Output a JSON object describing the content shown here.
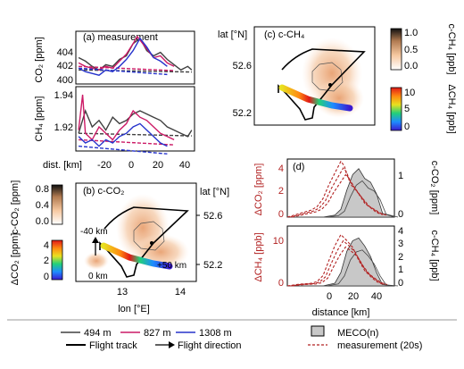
{
  "panel_a": {
    "label": "(a) measurement",
    "co2_axis_label": "CO₂ [ppm]",
    "ch4_axis_label": "CH₄ [ppm]",
    "co2_ticks": [
      "404",
      "402",
      "400"
    ],
    "ch4_ticks": [
      "1.94",
      "1.92"
    ],
    "x_label": "dist. [km]",
    "x_ticks": [
      "-20",
      "0",
      "20",
      "40"
    ]
  },
  "panel_b": {
    "label": "(b) c-CO₂",
    "lat_label": "lat [°N]",
    "lat_ticks": [
      "52.6",
      "52.2"
    ],
    "lon_label": "lon [°E]",
    "lon_ticks": [
      "13",
      "14"
    ],
    "ann_minus40": "-40 km",
    "ann_0": "0 km",
    "ann_plus50": "+50 km"
  },
  "panel_c": {
    "label": "(c) c-CH₄",
    "lat_label": "lat [°N]",
    "lat_ticks": [
      "52.6",
      "52.2"
    ]
  },
  "colorbars": {
    "c_co2_label": "c-CO₂ [ppm]",
    "c_co2_ticks": [
      "0.8",
      "0.4",
      "0.0"
    ],
    "d_co2_label": "ΔCO₂ [ppm]",
    "d_co2_ticks": [
      "4",
      "2",
      "0"
    ],
    "c_ch4_label": "c-CH₄ [ppb]",
    "c_ch4_ticks": [
      "1.0",
      "0.5",
      "0.0"
    ],
    "d_ch4_label": "ΔCH₄ [ppb]",
    "d_ch4_ticks": [
      "10",
      "5",
      "0"
    ]
  },
  "panel_d": {
    "label": "(d)",
    "dco2_label": "ΔCO₂ [ppm]",
    "cco2_label": "c-CO₂ [ppm]",
    "dch4_label": "ΔCH₄ [ppb]",
    "cch4_label": "c-CH₄ [ppb]",
    "dco2_ticks": [
      "4",
      "2",
      "0"
    ],
    "cco2_ticks": [
      "1",
      "0"
    ],
    "dch4_ticks": [
      "10",
      "0"
    ],
    "cch4_ticks": [
      "4",
      "3",
      "2",
      "1",
      "0"
    ],
    "x_label": "distance [km]",
    "x_ticks": [
      "0",
      "20",
      "40"
    ]
  },
  "legend": {
    "l494": "494 m",
    "l827": "827 m",
    "l1308": "1308 m",
    "track": "Flight track",
    "direction": "Flight direction",
    "meco": "MECO(n)",
    "meas": "measurement (20s)"
  },
  "colors": {
    "alt494": "#404040",
    "alt827": "#cc1a66",
    "alt1308": "#2633cc",
    "measurement": "#b22222",
    "axis_red": "#b22222",
    "meco_fill": "#c8c8c8"
  },
  "chart_data": [
    {
      "type": "line",
      "title": "(a) measurement",
      "xlabel": "dist. [km]",
      "ylabel": "CO₂ [ppm]",
      "xlim": [
        -37,
        50
      ],
      "ylim": [
        399.6,
        405.6
      ],
      "series": [
        {
          "name": "494 m",
          "x": [
            -35,
            -30,
            -25,
            -20,
            -15,
            -10,
            -5,
            0,
            5,
            10,
            15,
            20,
            25,
            30,
            35,
            40,
            45,
            48
          ],
          "y": [
            402.6,
            402.2,
            401.6,
            401.2,
            401.8,
            401.6,
            402.4,
            402.8,
            404.2,
            404.8,
            403.4,
            402.8,
            403.2,
            402.4,
            401.8,
            401.2,
            401.6,
            401.2
          ]
        },
        {
          "name": "827 m",
          "x": [
            -35,
            -30,
            -25,
            -20,
            -15,
            -10,
            -5,
            0,
            5,
            8,
            10,
            15,
            20,
            25,
            30,
            35
          ],
          "y": [
            402.0,
            401.6,
            401.4,
            401.2,
            401.6,
            401.4,
            402.2,
            403.0,
            404.2,
            405.0,
            404.6,
            403.6,
            402.6,
            402.8,
            402.0,
            401.6
          ]
        },
        {
          "name": "1308 m",
          "x": [
            -35,
            -30,
            -25,
            -20,
            -15,
            -10,
            -5,
            0,
            5,
            10,
            15,
            20,
            25,
            30
          ],
          "y": [
            401.4,
            401.0,
            400.8,
            400.6,
            401.2,
            401.0,
            401.6,
            402.4,
            403.4,
            404.8,
            403.8,
            402.6,
            402.2,
            401.6
          ]
        }
      ]
    },
    {
      "type": "line",
      "xlabel": "dist. [km]",
      "ylabel": "CH₄ [ppm]",
      "xlim": [
        -37,
        50
      ],
      "ylim": [
        1.905,
        1.945
      ],
      "series": [
        {
          "name": "494 m",
          "x": [
            -35,
            -30,
            -25,
            -20,
            -15,
            -10,
            -5,
            0,
            5,
            10,
            15,
            20,
            25,
            30,
            35,
            40,
            45,
            48
          ],
          "y": [
            1.916,
            1.93,
            1.92,
            1.924,
            1.918,
            1.926,
            1.922,
            1.924,
            1.928,
            1.93,
            1.928,
            1.926,
            1.924,
            1.92,
            1.918,
            1.916,
            1.914,
            1.918
          ]
        },
        {
          "name": "827 m",
          "x": [
            -35,
            -32,
            -30,
            -25,
            -20,
            -15,
            -10,
            -5,
            0,
            5,
            10,
            15,
            20,
            25,
            30,
            35
          ],
          "y": [
            1.918,
            1.94,
            1.916,
            1.912,
            1.92,
            1.916,
            1.912,
            1.918,
            1.922,
            1.93,
            1.926,
            1.924,
            1.92,
            1.916,
            1.914,
            1.912
          ]
        },
        {
          "name": "1308 m",
          "x": [
            -35,
            -30,
            -25,
            -20,
            -15,
            -10,
            -5,
            0,
            5,
            10,
            15,
            20,
            25,
            30
          ],
          "y": [
            1.914,
            1.91,
            1.912,
            1.908,
            1.912,
            1.91,
            1.914,
            1.916,
            1.92,
            1.922,
            1.918,
            1.914,
            1.91,
            1.908
          ]
        }
      ]
    },
    {
      "type": "area",
      "title": "(d)",
      "xlabel": "distance [km]",
      "ylabel": "ΔCO₂ [ppm]",
      "y2label": "c-CO₂ [ppm]",
      "xlim": [
        -40,
        50
      ],
      "ylim": [
        0,
        5
      ],
      "y2lim": [
        0,
        1.5
      ],
      "series": [
        {
          "name": "MECO(n)",
          "x": [
            -40,
            -10,
            0,
            5,
            10,
            15,
            20,
            25,
            30,
            35,
            40,
            50
          ],
          "y2": [
            0,
            0,
            0.05,
            0.2,
            0.7,
            1.1,
            1.25,
            1.0,
            0.9,
            0.6,
            0.1,
            0
          ]
        },
        {
          "name": "measurement (20s)",
          "x": [
            -40,
            -30,
            -20,
            -15,
            -10,
            -5,
            0,
            5,
            8,
            10,
            15,
            20,
            25,
            30,
            35,
            40
          ],
          "y": [
            0,
            0.3,
            0.6,
            0.9,
            1.6,
            2.8,
            3.8,
            4.8,
            4.4,
            3.6,
            2.8,
            2.0,
            1.2,
            0.8,
            0.4,
            0.2
          ]
        }
      ]
    },
    {
      "type": "area",
      "xlabel": "distance [km]",
      "ylabel": "ΔCH₄ [ppb]",
      "y2label": "c-CH₄ [ppb]",
      "xlim": [
        -40,
        50
      ],
      "ylim": [
        0,
        14
      ],
      "y2lim": [
        0,
        4.5
      ],
      "series": [
        {
          "name": "MECO(n)",
          "x": [
            -40,
            -10,
            0,
            5,
            10,
            15,
            20,
            25,
            30,
            35,
            40,
            50
          ],
          "y2": [
            0,
            0,
            0.2,
            1.0,
            2.6,
            3.4,
            3.6,
            3.0,
            2.2,
            1.0,
            0.1,
            0
          ]
        },
        {
          "name": "measurement (20s)",
          "x": [
            -40,
            -30,
            -20,
            -15,
            -10,
            -5,
            0,
            5,
            10,
            15,
            20,
            25,
            30,
            35,
            40
          ],
          "y": [
            0,
            0.4,
            0.6,
            1.0,
            2.4,
            6.0,
            9.4,
            12.0,
            10.6,
            9.0,
            6.0,
            3.6,
            2.2,
            1.0,
            0.4
          ]
        }
      ]
    }
  ]
}
